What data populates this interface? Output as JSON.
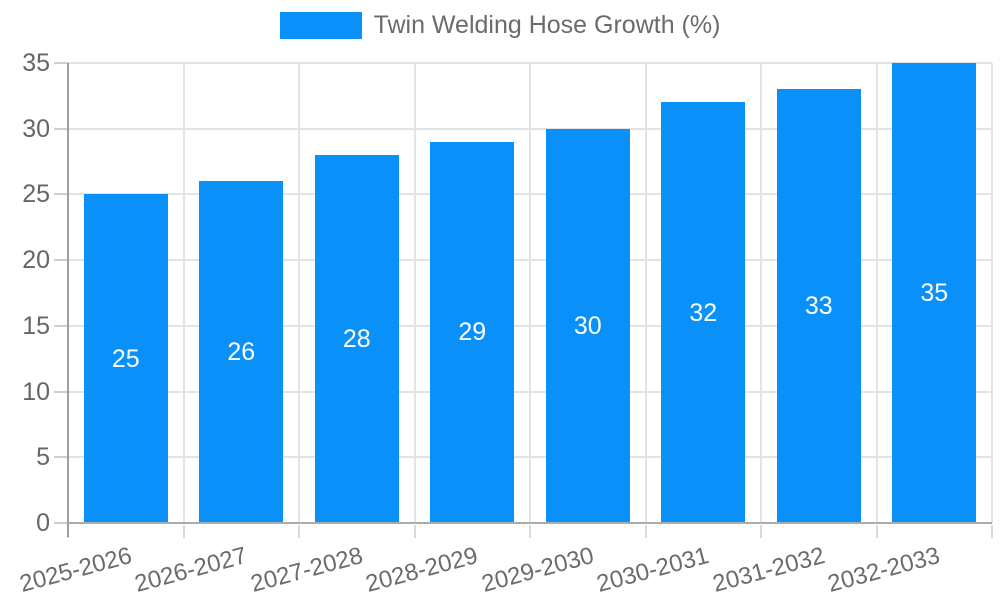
{
  "chart_data": {
    "type": "bar",
    "title": "",
    "xlabel": "",
    "ylabel": "",
    "legend": "Twin Welding Hose Growth (%)",
    "legend_position": "top-center",
    "categories": [
      "2025-2026",
      "2026-2027",
      "2027-2028",
      "2028-2029",
      "2029-2030",
      "2030-2031",
      "2031-2032",
      "2032-2033"
    ],
    "values": [
      25,
      26,
      28,
      29,
      30,
      32,
      33,
      35
    ],
    "bar_labels": [
      "25",
      "26",
      "28",
      "29",
      "30",
      "32",
      "33",
      "35"
    ],
    "y_ticks": [
      0,
      5,
      10,
      15,
      20,
      25,
      30,
      35
    ],
    "ylim": [
      0,
      35
    ],
    "grid": true,
    "colors": {
      "bar": "#0991f9",
      "grid": "#e3e3e3",
      "axis": "#9e9e9e",
      "tick_text": "#666666",
      "legend_text": "#6b6b6b",
      "bar_label_text": "#ffffff"
    }
  }
}
